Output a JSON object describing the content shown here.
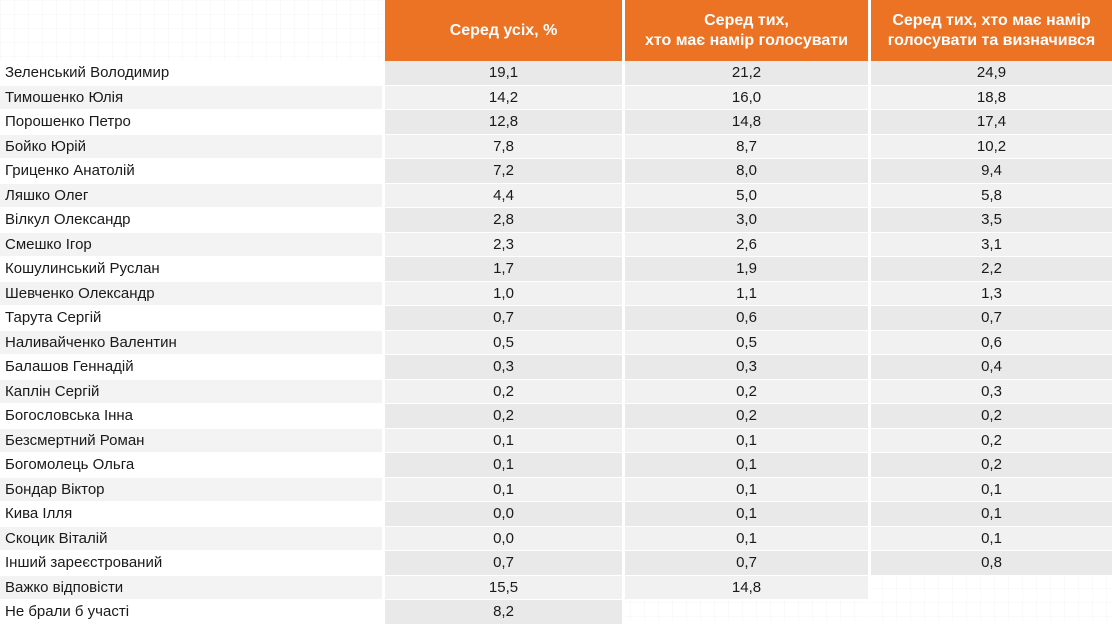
{
  "header": {
    "col_all": "Серед усіх, %",
    "col_voters_line1": "Серед тих,",
    "col_voters_line2": "хто має намір голосувати",
    "col_decided_line1": "Серед тих, хто має намір",
    "col_decided_line2": "голосувати та визначився"
  },
  "rows": [
    {
      "name": "Зеленський Володимир",
      "all": "19,1",
      "voters": "21,2",
      "decided": "24,9"
    },
    {
      "name": "Тимошенко Юлія",
      "all": "14,2",
      "voters": "16,0",
      "decided": "18,8"
    },
    {
      "name": "Порошенко Петро",
      "all": "12,8",
      "voters": "14,8",
      "decided": "17,4"
    },
    {
      "name": "Бойко Юрій",
      "all": "7,8",
      "voters": "8,7",
      "decided": "10,2"
    },
    {
      "name": "Гриценко Анатолій",
      "all": "7,2",
      "voters": "8,0",
      "decided": "9,4"
    },
    {
      "name": "Ляшко Олег",
      "all": "4,4",
      "voters": "5,0",
      "decided": "5,8"
    },
    {
      "name": "Вілкул Олександр",
      "all": "2,8",
      "voters": "3,0",
      "decided": "3,5"
    },
    {
      "name": "Смешко Ігор",
      "all": "2,3",
      "voters": "2,6",
      "decided": "3,1"
    },
    {
      "name": "Кошулинський Руслан",
      "all": "1,7",
      "voters": "1,9",
      "decided": "2,2"
    },
    {
      "name": "Шевченко Олександр",
      "all": "1,0",
      "voters": "1,1",
      "decided": "1,3"
    },
    {
      "name": "Тарута Сергій",
      "all": "0,7",
      "voters": "0,6",
      "decided": "0,7"
    },
    {
      "name": "Наливайченко Валентин",
      "all": "0,5",
      "voters": "0,5",
      "decided": "0,6"
    },
    {
      "name": "Балашов Геннадій",
      "all": "0,3",
      "voters": "0,3",
      "decided": "0,4"
    },
    {
      "name": "Каплін Сергій",
      "all": "0,2",
      "voters": "0,2",
      "decided": "0,3"
    },
    {
      "name": "Богословська Інна",
      "all": "0,2",
      "voters": "0,2",
      "decided": "0,2"
    },
    {
      "name": "Безсмертний Роман",
      "all": "0,1",
      "voters": "0,1",
      "decided": "0,2"
    },
    {
      "name": "Богомолець Ольга",
      "all": "0,1",
      "voters": "0,1",
      "decided": "0,2"
    },
    {
      "name": "Бондар Віктор",
      "all": "0,1",
      "voters": "0,1",
      "decided": "0,1"
    },
    {
      "name": "Кива Ілля",
      "all": "0,0",
      "voters": "0,1",
      "decided": "0,1"
    },
    {
      "name": "Скоцик Віталій",
      "all": "0,0",
      "voters": "0,1",
      "decided": "0,1"
    },
    {
      "name": "Інший зареєстрований",
      "all": "0,7",
      "voters": "0,7",
      "decided": "0,8"
    },
    {
      "name": "Важко відповісти",
      "all": "15,5",
      "voters": "14,8",
      "decided": ""
    },
    {
      "name": "Не брали б участі",
      "all": "8,2",
      "voters": "",
      "decided": ""
    }
  ],
  "colors": {
    "header_orange": "#ec7224",
    "header_text": "#ffffff"
  }
}
